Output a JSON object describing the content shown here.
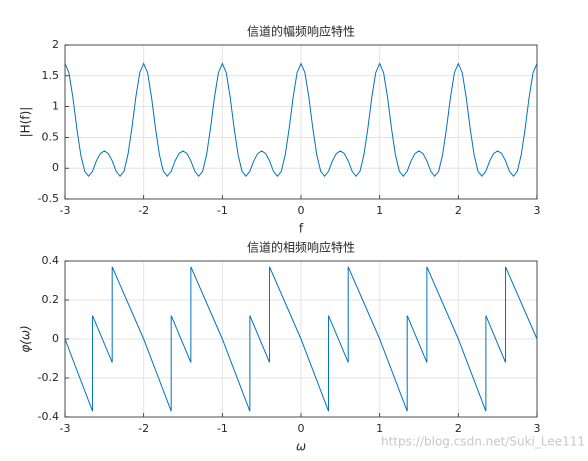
{
  "chart_data": [
    {
      "type": "line",
      "title": "信道的幅频响应特性",
      "xlabel": "f",
      "ylabel": "|H(f)|",
      "color": "#0072bd",
      "grid": true,
      "xlim": [
        -3,
        3
      ],
      "ylim": [
        -0.5,
        2
      ],
      "xticks": [
        -3,
        -2,
        -1,
        0,
        1,
        2,
        3
      ],
      "yticks": [
        -0.5,
        0,
        0.5,
        1,
        1.5,
        2
      ],
      "x": [
        -3,
        -2.95,
        -2.9,
        -2.85,
        -2.8,
        -2.75,
        -2.7,
        -2.65,
        -2.6,
        -2.55,
        -2.5,
        -2.45,
        -2.4,
        -2.35,
        -2.3,
        -2.25,
        -2.2,
        -2.15,
        -2.1,
        -2.05,
        -2,
        -1.95,
        -1.9,
        -1.85,
        -1.8,
        -1.75,
        -1.7,
        -1.65,
        -1.6,
        -1.55,
        -1.5,
        -1.45,
        -1.4,
        -1.35,
        -1.3,
        -1.25,
        -1.2,
        -1.15,
        -1.1,
        -1.05,
        -1,
        -0.95,
        -0.9,
        -0.85,
        -0.8,
        -0.75,
        -0.7,
        -0.65,
        -0.6,
        -0.55,
        -0.5,
        -0.45,
        -0.4,
        -0.35,
        -0.3,
        -0.25,
        -0.2,
        -0.15,
        -0.1,
        -0.05,
        0,
        0.05,
        0.1,
        0.15,
        0.2,
        0.25,
        0.3,
        0.35,
        0.4,
        0.45,
        0.5,
        0.55,
        0.6,
        0.65,
        0.7,
        0.75,
        0.8,
        0.85,
        0.9,
        0.95,
        1,
        1.05,
        1.1,
        1.15,
        1.2,
        1.25,
        1.3,
        1.35,
        1.4,
        1.45,
        1.5,
        1.55,
        1.6,
        1.65,
        1.7,
        1.75,
        1.8,
        1.85,
        1.9,
        1.95,
        2,
        2.05,
        2.1,
        2.15,
        2.2,
        2.25,
        2.3,
        2.35,
        2.4,
        2.45,
        2.5,
        2.55,
        2.6,
        2.65,
        2.7,
        2.75,
        2.8,
        2.85,
        2.9,
        2.95,
        3
      ],
      "values": [
        1.7,
        1.55,
        1.15,
        0.65,
        0.22,
        -0.05,
        -0.13,
        -0.05,
        0.12,
        0.24,
        0.28,
        0.24,
        0.12,
        -0.05,
        -0.13,
        -0.05,
        0.22,
        0.65,
        1.15,
        1.55,
        1.7,
        1.55,
        1.15,
        0.65,
        0.22,
        -0.05,
        -0.13,
        -0.05,
        0.12,
        0.24,
        0.28,
        0.24,
        0.12,
        -0.05,
        -0.13,
        -0.05,
        0.22,
        0.65,
        1.15,
        1.55,
        1.7,
        1.55,
        1.15,
        0.65,
        0.22,
        -0.05,
        -0.13,
        -0.05,
        0.12,
        0.24,
        0.28,
        0.24,
        0.12,
        -0.05,
        -0.13,
        -0.05,
        0.22,
        0.65,
        1.15,
        1.55,
        1.7,
        1.55,
        1.15,
        0.65,
        0.22,
        -0.05,
        -0.13,
        -0.05,
        0.12,
        0.24,
        0.28,
        0.24,
        0.12,
        -0.05,
        -0.13,
        -0.05,
        0.22,
        0.65,
        1.15,
        1.55,
        1.7,
        1.55,
        1.15,
        0.65,
        0.22,
        -0.05,
        -0.13,
        -0.05,
        0.12,
        0.24,
        0.28,
        0.24,
        0.12,
        -0.05,
        -0.13,
        -0.05,
        0.22,
        0.65,
        1.15,
        1.55,
        1.7,
        1.55,
        1.15,
        0.65,
        0.22,
        -0.05,
        -0.13,
        -0.05,
        0.12,
        0.24,
        0.28,
        0.24,
        0.12,
        -0.05,
        -0.13,
        -0.05,
        0.22,
        0.65,
        1.15,
        1.55,
        1.7
      ]
    },
    {
      "type": "line",
      "title": "信道的相频响应特性",
      "xlabel": "ω",
      "ylabel": "φ(ω)",
      "color": "#0072bd",
      "grid": true,
      "xlim": [
        -3,
        3
      ],
      "ylim": [
        -0.4,
        0.4
      ],
      "xticks": [
        -3,
        -2,
        -1,
        0,
        1,
        2,
        3
      ],
      "yticks": [
        -0.4,
        -0.2,
        0,
        0.2,
        0.4
      ],
      "x": [
        -3,
        -2.65,
        -2.65,
        -2.4,
        -2.4,
        -2,
        -1.65,
        -1.65,
        -1.4,
        -1.4,
        -1,
        -0.65,
        -0.65,
        -0.4,
        -0.4,
        0,
        0.35,
        0.35,
        0.6,
        0.6,
        1,
        1.35,
        1.35,
        1.6,
        1.6,
        2,
        2.35,
        2.35,
        2.6,
        2.6,
        3
      ],
      "values": [
        0,
        -0.37,
        0.12,
        -0.12,
        0.37,
        0,
        -0.37,
        0.12,
        -0.12,
        0.37,
        0,
        -0.37,
        0.12,
        -0.12,
        0.37,
        0,
        -0.37,
        0.12,
        -0.12,
        0.37,
        0,
        -0.37,
        0.12,
        -0.12,
        0.37,
        0,
        -0.37,
        0.12,
        -0.12,
        0.37,
        0
      ]
    }
  ],
  "watermark": "https://blog.csdn.net/Suki_Lee111"
}
